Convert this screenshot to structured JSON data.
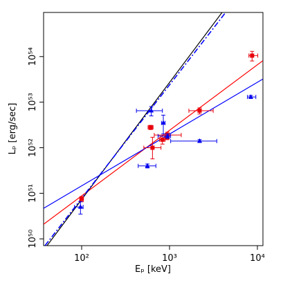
{
  "chart_data": {
    "type": "scatter",
    "xlabel": "Eₚ [keV]",
    "ylabel": "Lₚ [erg/sec]",
    "xscale": "log",
    "yscale": "log",
    "xlim": [
      36.9,
      11560
    ],
    "ylim": [
      7.1e+49,
      9.3e+54
    ],
    "xticks": [
      {
        "value": 100,
        "label": "10²"
      },
      {
        "value": 1000,
        "label": "10³"
      },
      {
        "value": 10000,
        "label": "10⁴"
      }
    ],
    "yticks": [
      {
        "value": 1e+50,
        "label": "10⁵⁰"
      },
      {
        "value": 1e+51,
        "label": "10⁵¹"
      },
      {
        "value": 1e+52,
        "label": "10⁵²"
      },
      {
        "value": 1e+53,
        "label": "10⁵³"
      },
      {
        "value": 1e+54,
        "label": "10⁵⁴"
      }
    ],
    "series": [
      {
        "color": "#e8000b",
        "marker": "square",
        "x": [
          100,
          610,
          640,
          830,
          950,
          940,
          2200,
          8700
        ],
        "values": [
          7.5e+50,
          2.8e+52,
          1e+52,
          1.5e+52,
          1.9e+52,
          1.7e+52,
          6.5e+52,
          1.05e+54
        ],
        "xerr": [
          [
            5,
            5
          ],
          [
            40,
            40
          ],
          [
            130,
            160
          ],
          [
            60,
            60
          ],
          [
            280,
            410
          ],
          [
            50,
            50
          ],
          [
            540,
            940
          ],
          [
            700,
            1400
          ]
        ],
        "yerr": [
          [
            1e+50,
            1e+50
          ],
          [
            3e+51,
            3e+51
          ],
          [
            4.3e+51,
            7e+51
          ],
          [
            3e+51,
            3e+51
          ],
          [
            3e+51,
            3e+51
          ],
          [
            2e+51,
            2e+51
          ],
          [
            1e+52,
            1e+52
          ],
          [
            2.5e+53,
            2.5e+53
          ]
        ]
      },
      {
        "color": "#0000ee",
        "marker": "triangle",
        "x": [
          97,
          560,
          620,
          850,
          950,
          2200,
          8400
        ],
        "values": [
          5e+50,
          4e+51,
          6.5e+52,
          3.5e+52,
          1.8e+52,
          1.4e+52,
          1.3e+53
        ],
        "xerr": [
          [
            14,
            7
          ],
          [
            120,
            140
          ],
          [
            200,
            210
          ],
          [
            40,
            40
          ],
          [
            210,
            80
          ],
          [
            1170,
            1250
          ],
          [
            700,
            1200
          ]
        ],
        "yerr": [
          [
            1.5e+50,
            1.5e+50
          ],
          [
            4e+50,
            4e+50
          ],
          [
            1.5e+52,
            1.5e+52
          ],
          [
            1.5e+52,
            1.7e+52
          ],
          [
            2e+51,
            2e+51
          ],
          [
            1e+51,
            1e+51
          ],
          [
            1e+52,
            1e+52
          ]
        ]
      }
    ],
    "lines": [
      {
        "color": "#ff0000",
        "dash": "solid",
        "x": [
          37,
          11500
        ],
        "values": [
          2.1e+50,
          8.1e+53
        ]
      },
      {
        "color": "#0000ff",
        "dash": "solid",
        "x": [
          37,
          11500
        ],
        "values": [
          4.7e+50,
          3.2e+53
        ]
      },
      {
        "color": "#000000",
        "dash": "solid",
        "x": [
          40.4,
          3960
        ],
        "values": [
          7.1e+49,
          9.3e+54
        ]
      },
      {
        "color": "#0000ff",
        "dash": "dashdot",
        "x": [
          38.3,
          4350
        ],
        "values": [
          7.1e+49,
          9.3e+54
        ]
      }
    ]
  }
}
